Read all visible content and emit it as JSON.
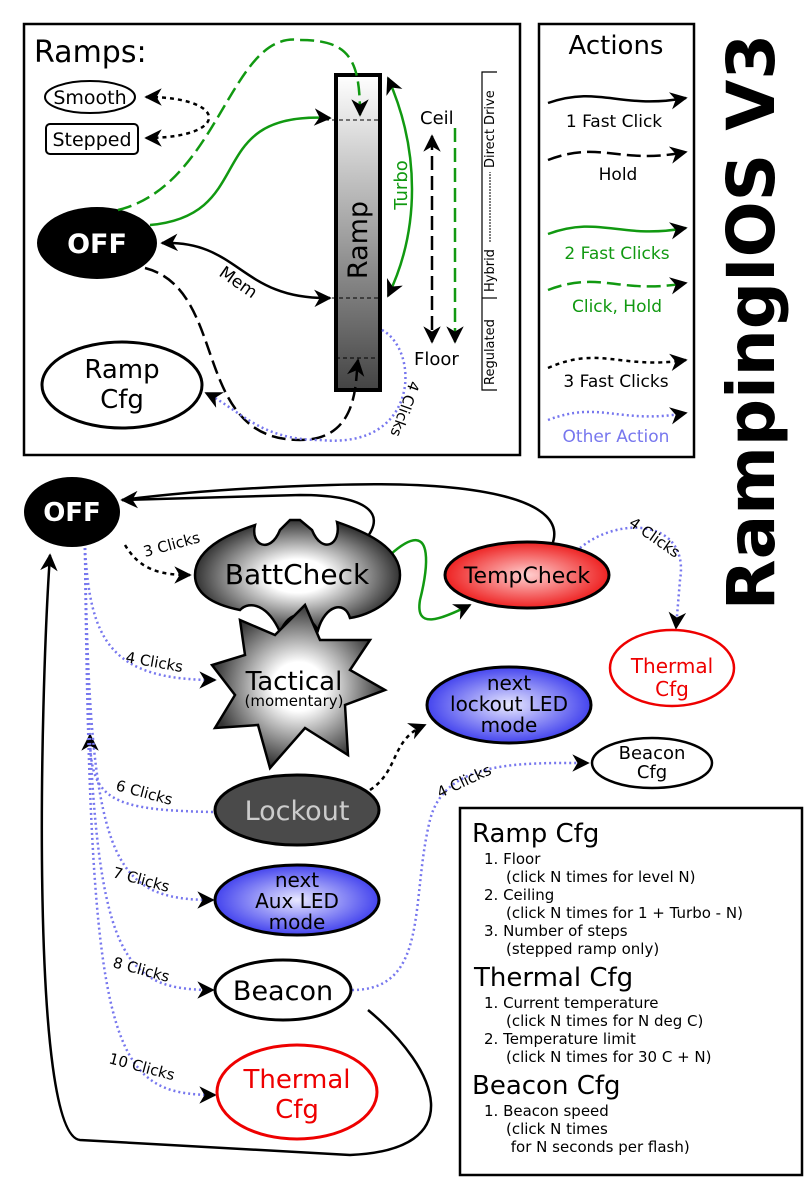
{
  "title": "RampingIOS V3",
  "colors": {
    "green": "#119911",
    "blue": "#7777ee",
    "red": "#ee0000",
    "black": "#000000"
  },
  "ramps_panel": {
    "title": "Ramps:",
    "smooth": "Smooth",
    "stepped": "Stepped",
    "off": "OFF",
    "ramp_cfg": [
      "Ramp",
      "Cfg"
    ],
    "ramp": "Ramp",
    "turbo": "Turbo",
    "ceil": "Ceil",
    "floor": "Floor",
    "mem": "Mem",
    "four_clicks": "4 Clicks",
    "drive_modes": {
      "regulated": "Regulated",
      "hybrid": "Hybrid",
      "direct": "Direct Drive"
    }
  },
  "actions": {
    "title": "Actions",
    "items": [
      {
        "label": "1 Fast Click",
        "style": "solid",
        "color": "#000000"
      },
      {
        "label": "Hold",
        "style": "dashed",
        "color": "#000000"
      },
      {
        "label": "2 Fast Clicks",
        "style": "solid",
        "color": "#119911"
      },
      {
        "label": "Click, Hold",
        "style": "dashed",
        "color": "#119911"
      },
      {
        "label": "3 Fast Clicks",
        "style": "dotted",
        "color": "#000000"
      },
      {
        "label": "Other Action",
        "style": "dotted",
        "color": "#7777ee"
      }
    ]
  },
  "flow": {
    "off": "OFF",
    "battcheck": "BattCheck",
    "tempcheck": "TempCheck",
    "thermal_cfg_top": [
      "Thermal",
      "Cfg"
    ],
    "tactical": [
      "Tactical",
      "(momentary)"
    ],
    "lockout_led": [
      "next",
      "lockout LED",
      "mode"
    ],
    "beacon_cfg": [
      "Beacon",
      "Cfg"
    ],
    "lockout": "Lockout",
    "aux_led": [
      "next",
      "Aux LED",
      "mode"
    ],
    "beacon": "Beacon",
    "thermal_cfg": [
      "Thermal",
      "Cfg"
    ],
    "edge_labels": {
      "three_clicks": "3 Clicks",
      "four_clicks_tactical": "4 Clicks",
      "six_clicks": "6 Clicks",
      "seven_clicks": "7 Clicks",
      "eight_clicks": "8 Clicks",
      "ten_clicks": "10 Clicks",
      "four_clicks_beacon": "4 Clicks",
      "four_clicks_thermal": "4 Clicks"
    }
  },
  "config_box": {
    "sections": [
      {
        "title": "Ramp Cfg",
        "lines": [
          "1. Floor",
          "(click N times for level N)",
          "2. Ceiling",
          "(click N times for 1 + Turbo - N)",
          "3. Number of steps",
          "(stepped ramp only)"
        ]
      },
      {
        "title": "Thermal Cfg",
        "lines": [
          "1. Current temperature",
          "(click N times for N deg C)",
          "2. Temperature limit",
          "(click N times for 30 C + N)"
        ]
      },
      {
        "title": "Beacon Cfg",
        "lines": [
          "1. Beacon speed",
          "(click N times",
          " for N seconds per flash)"
        ]
      }
    ]
  }
}
